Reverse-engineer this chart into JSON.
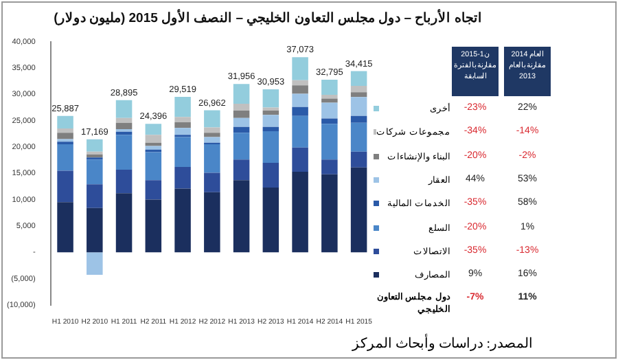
{
  "chart_data": [
    {
      "type": "bar",
      "title": "اتجاه الأرباح – دول مجلس التعاون الخليجي – النصف الأول 2015 (مليون دولار)",
      "categories": [
        "H1 2010",
        "H2 2010",
        "H1 2011",
        "H2 2011",
        "H1 2012",
        "H2 2012",
        "H1 2013",
        "H2 2013",
        "H1 2014",
        "H2 2014",
        "H1 2015"
      ],
      "stacked": true,
      "legend": "right",
      "series": [
        {
          "name": "المصارف",
          "color": "#1b2f5e",
          "values": [
            9500,
            8400,
            11200,
            10000,
            12100,
            11400,
            13700,
            12300,
            15300,
            14800,
            16100
          ]
        },
        {
          "name": "الاتصالات",
          "color": "#2e4d9a",
          "values": [
            6000,
            4500,
            4500,
            3700,
            4100,
            3700,
            3900,
            4700,
            4600,
            2800,
            3000
          ]
        },
        {
          "name": "السلع",
          "color": "#4a86c8",
          "values": [
            5000,
            4700,
            6600,
            5300,
            5700,
            5400,
            5100,
            6000,
            6000,
            6800,
            5500
          ]
        },
        {
          "name": "الخدمات المالية",
          "color": "#2a5aa8",
          "values": [
            500,
            400,
            600,
            500,
            400,
            300,
            1100,
            800,
            1700,
            1000,
            1300
          ]
        },
        {
          "name": "العقار",
          "color": "#9dc3e6",
          "values": [
            500,
            -4300,
            500,
            700,
            1300,
            1100,
            1700,
            2300,
            2500,
            3000,
            3600
          ]
        },
        {
          "name": "البناء والإنشاءات",
          "color": "#7f7f7f",
          "values": [
            1200,
            600,
            1200,
            600,
            1100,
            800,
            1400,
            800,
            1600,
            800,
            900
          ]
        },
        {
          "name": "مجموعات شركات",
          "color": "#c0c0c0",
          "values": [
            800,
            500,
            900,
            1500,
            1000,
            1000,
            1300,
            600,
            1000,
            700,
            1200
          ]
        },
        {
          "name": "أخرى",
          "color": "#93cddd",
          "values": [
            2387,
            2369,
            3395,
            2096,
            3819,
            3262,
            3756,
            3453,
            4373,
            2895,
            2815
          ]
        }
      ],
      "ylim": [
        -10000,
        40000
      ],
      "yticks": [
        {
          "value": -10000,
          "label": "(10,000)"
        },
        {
          "value": -5000,
          "label": "(5,000)"
        },
        {
          "value": 0,
          "label": "-"
        },
        {
          "value": 5000,
          "label": "5,000"
        },
        {
          "value": 10000,
          "label": "10,000"
        },
        {
          "value": 15000,
          "label": "15,000"
        },
        {
          "value": 20000,
          "label": "20,000"
        },
        {
          "value": 25000,
          "label": "25,000"
        },
        {
          "value": 30000,
          "label": "30,000"
        },
        {
          "value": 35000,
          "label": "35,000"
        },
        {
          "value": 40000,
          "label": "40,000"
        }
      ],
      "totals": [
        "25,887",
        "17,169",
        "28,895",
        "24,396",
        "29,519",
        "26,962",
        "31,956",
        "30,953",
        "37,073",
        "32,795",
        "34,415"
      ],
      "annotations": [
        "المصدر: دراسات وأبحاث المركز"
      ]
    },
    {
      "type": "other",
      "annotations": [
        "ن1-2015 مقارنة بالفترة السابقة",
        "العام 2014 مقارنة بالعام 2013",
        "-23%",
        "22%",
        "-34%",
        "-14%",
        "-20%",
        "-2%",
        "44%",
        "53%",
        "-35%",
        "58%",
        "-20%",
        "1%",
        "-35%",
        "-13%",
        "9%",
        "16%",
        "دول مجلس التعاون الخليجي",
        "-7%",
        "11%"
      ]
    }
  ]
}
